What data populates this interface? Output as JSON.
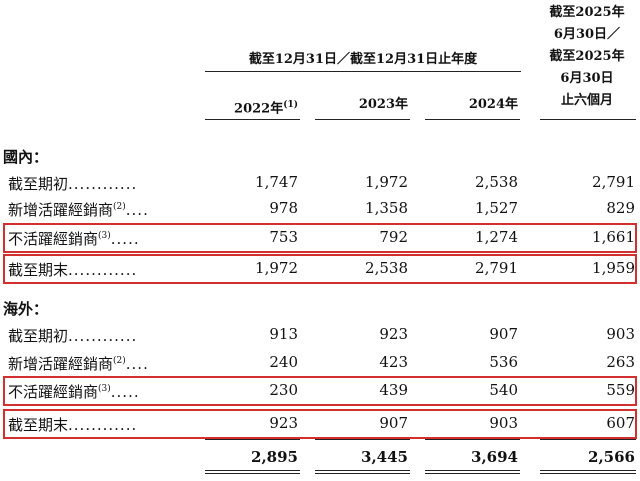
{
  "header": {
    "span_title": "截至12月31日／截至12月31日止年度",
    "last_col_lines": [
      "截至2025年",
      "6月30日／",
      "截至2025年",
      "6月30日",
      "止六個月"
    ],
    "years": [
      {
        "label": "2022年",
        "note": "(1)"
      },
      {
        "label": "2023年",
        "note": ""
      },
      {
        "label": "2024年",
        "note": ""
      }
    ]
  },
  "domestic": {
    "title": "國內：",
    "rows": [
      {
        "label": "截至期初",
        "note": "",
        "dots": "............",
        "values": [
          "1,747",
          "1,972",
          "2,538",
          "2,791"
        ],
        "highlight": false
      },
      {
        "label": "新增活躍經銷商",
        "note": "(2)",
        "dots": "....",
        "values": [
          "978",
          "1,358",
          "1,527",
          "829"
        ],
        "highlight": false
      },
      {
        "label": "不活躍經銷商",
        "note": "(3)",
        "dots": ".....",
        "values": [
          "753",
          "792",
          "1,274",
          "1,661"
        ],
        "highlight": true
      },
      {
        "label": "截至期末",
        "note": "",
        "dots": "............",
        "values": [
          "1,972",
          "2,538",
          "2,791",
          "1,959"
        ],
        "highlight": true
      }
    ]
  },
  "overseas": {
    "title": "海外：",
    "rows": [
      {
        "label": "截至期初",
        "note": "",
        "dots": "............",
        "values": [
          "913",
          "923",
          "907",
          "903"
        ],
        "highlight": false
      },
      {
        "label": "新增活躍經銷商",
        "note": "(2)",
        "dots": "....",
        "values": [
          "240",
          "423",
          "536",
          "263"
        ],
        "highlight": false
      },
      {
        "label": "不活躍經銷商",
        "note": "(3)",
        "dots": ".....",
        "values": [
          "230",
          "439",
          "540",
          "559"
        ],
        "highlight": true
      },
      {
        "label": "截至期末",
        "note": "",
        "dots": "............",
        "values": [
          "923",
          "907",
          "903",
          "607"
        ],
        "highlight": true
      }
    ]
  },
  "totals": [
    "2,895",
    "3,445",
    "3,694",
    "2,566"
  ],
  "highlight_color": "#d32f2f"
}
